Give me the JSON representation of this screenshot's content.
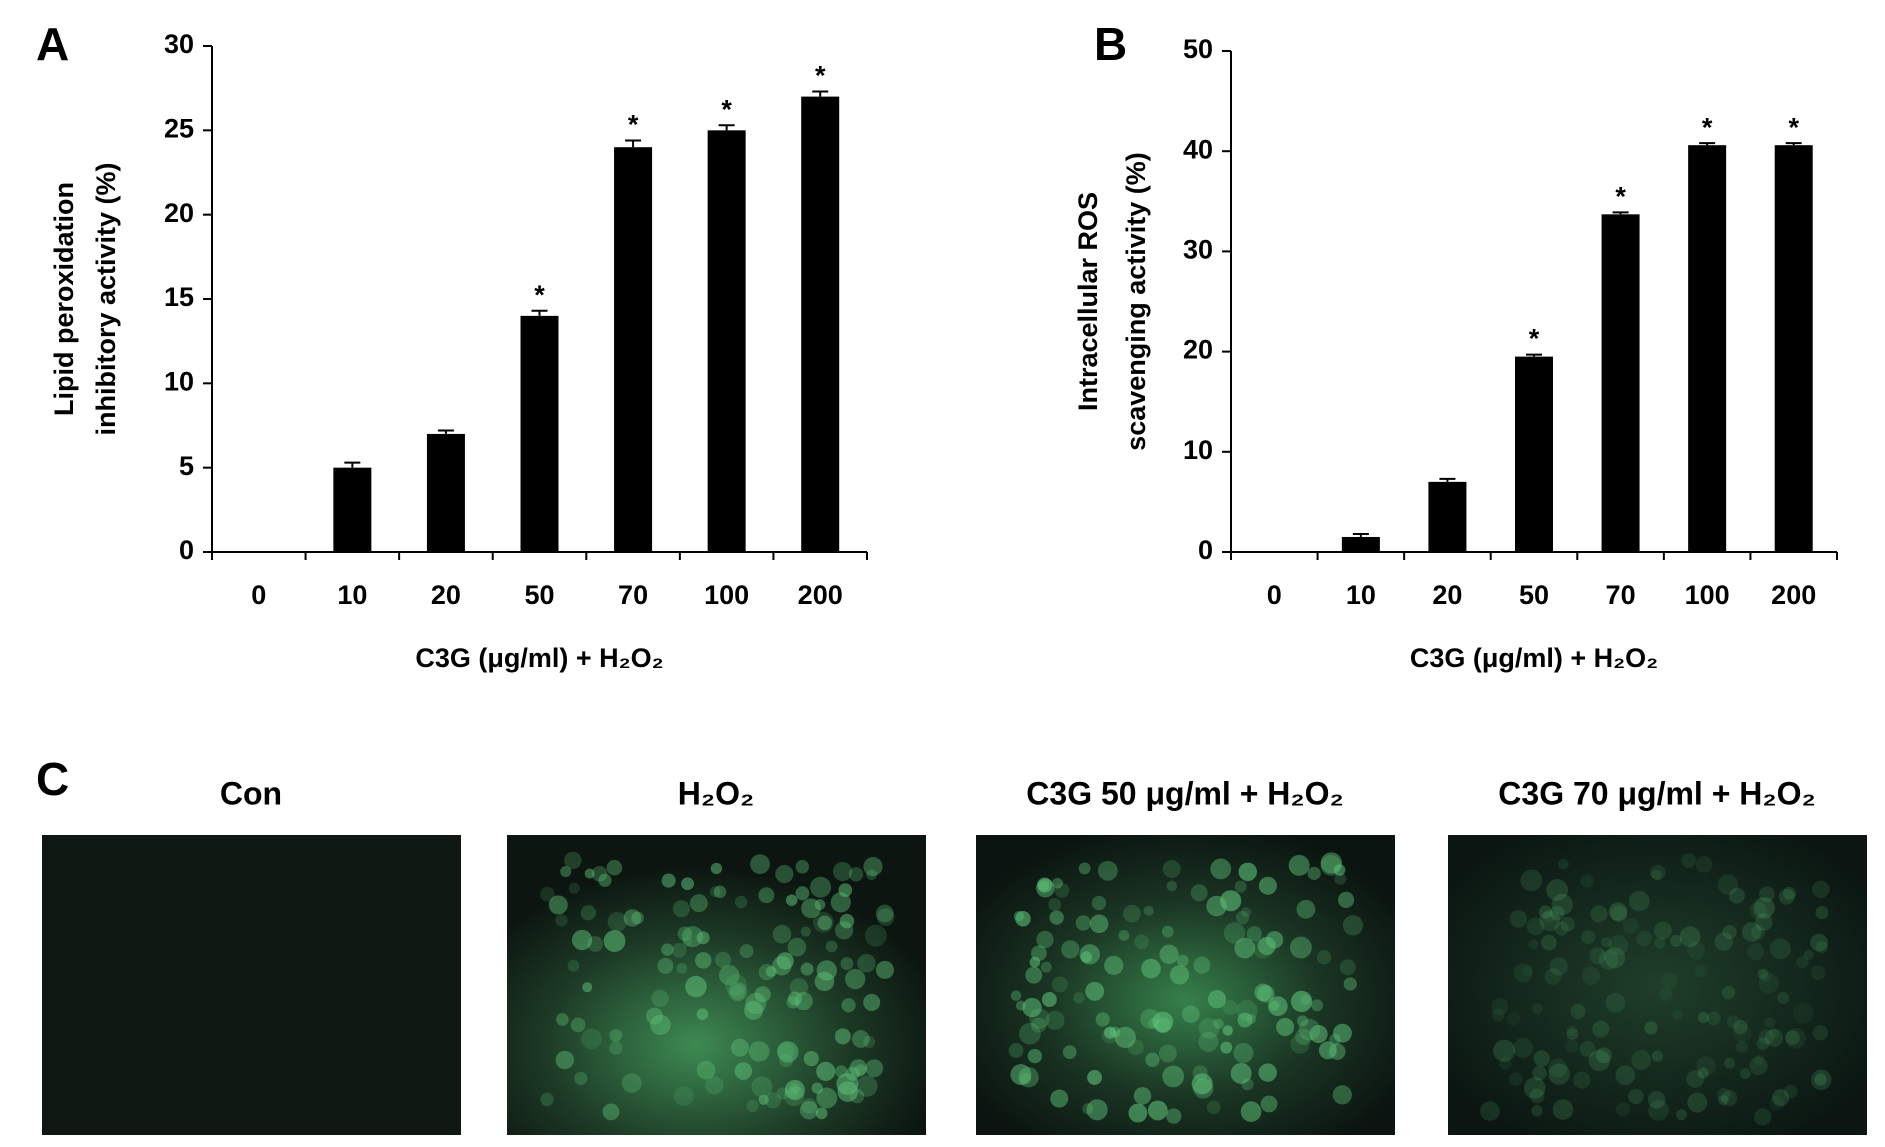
{
  "chart_data": [
    {
      "type": "bar",
      "panel_label": "A",
      "ylabel": [
        "Lipid peroxidation",
        "inhibitory activity (%)"
      ],
      "xlabel": "C3G (μg/ml) + H₂O₂",
      "categories": [
        "0",
        "10",
        "20",
        "50",
        "70",
        "100",
        "200"
      ],
      "values": [
        0,
        5,
        7,
        14,
        24,
        25,
        27
      ],
      "errors": [
        0,
        0.3,
        0.2,
        0.3,
        0.4,
        0.3,
        0.3
      ],
      "annotations": [
        null,
        null,
        null,
        "*",
        "*",
        "*",
        "*"
      ],
      "color": "#000000",
      "ylim": [
        0,
        30
      ],
      "yticks": [
        0,
        5,
        10,
        15,
        20,
        25,
        30
      ]
    },
    {
      "type": "bar",
      "panel_label": "B",
      "ylabel": [
        "Intracellular ROS",
        "scavenging activity (%)"
      ],
      "xlabel": "C3G (μg/ml) + H₂O₂",
      "categories": [
        "0",
        "10",
        "20",
        "50",
        "70",
        "100",
        "200"
      ],
      "values": [
        0,
        1.5,
        7,
        19.5,
        33.7,
        40.6,
        40.6
      ],
      "errors": [
        0,
        0.3,
        0.3,
        0.2,
        0.2,
        0.2,
        0.2
      ],
      "annotations": [
        null,
        null,
        null,
        "*",
        "*",
        "*",
        "*"
      ],
      "color": "#000000",
      "ylim": [
        0,
        50
      ],
      "yticks": [
        0,
        10,
        20,
        30,
        40,
        50
      ]
    }
  ],
  "panel_c": {
    "panel_label": "C",
    "images": [
      "Con",
      "H₂O₂",
      "C3G 50 μg/ml + H₂O₂",
      "C3G 70 μg/ml + H₂O₂"
    ]
  }
}
